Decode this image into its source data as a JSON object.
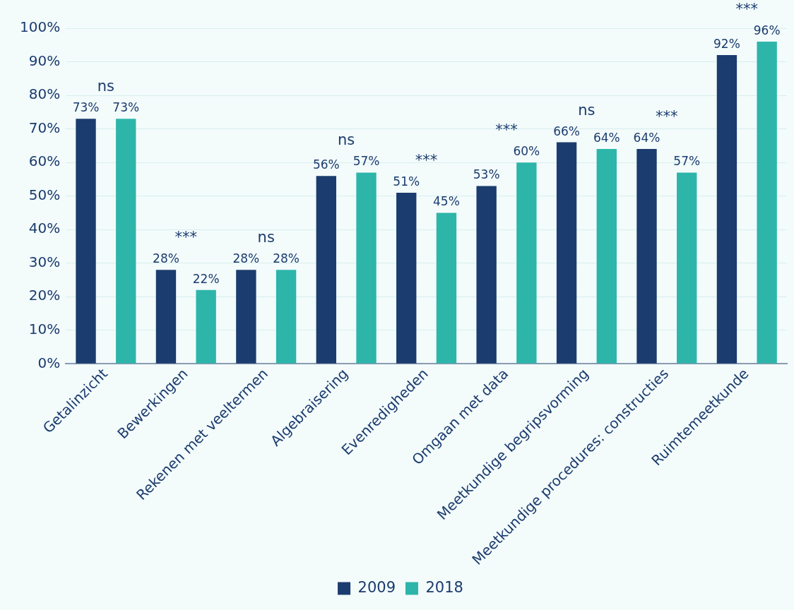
{
  "chart_data": {
    "type": "bar",
    "categories": [
      "Getalinzicht",
      "Bewerkingen",
      "Rekenen met veeltermen",
      "Algebraisering",
      "Evenredigheden",
      "Omgaan met data",
      "Meetkundige begripsvorming",
      "Meetkundige procedures: constructies",
      "Ruimtemeetkunde"
    ],
    "series": [
      {
        "name": "2009",
        "color": "#1b3c6e",
        "values": [
          73,
          28,
          28,
          56,
          51,
          53,
          66,
          64,
          92
        ],
        "value_labels": [
          "73%",
          "28%",
          "28%",
          "56%",
          "51%",
          "53%",
          "66%",
          "64%",
          "92%"
        ]
      },
      {
        "name": "2018",
        "color": "#2db5aa",
        "values": [
          73,
          22,
          28,
          57,
          45,
          60,
          64,
          57,
          96
        ],
        "value_labels": [
          "73%",
          "22%",
          "28%",
          "57%",
          "45%",
          "60%",
          "64%",
          "57%",
          "96%"
        ]
      }
    ],
    "ylim": [
      0,
      100
    ],
    "yticks": [
      {
        "value": 0,
        "label": "0%"
      },
      {
        "value": 10,
        "label": "10%"
      },
      {
        "value": 20,
        "label": "20%"
      },
      {
        "value": 30,
        "label": "30%"
      },
      {
        "value": 40,
        "label": "40%"
      },
      {
        "value": 50,
        "label": "50%"
      },
      {
        "value": 60,
        "label": "60%"
      },
      {
        "value": 70,
        "label": "70%"
      },
      {
        "value": 80,
        "label": "80%"
      },
      {
        "value": 90,
        "label": "90%"
      },
      {
        "value": 100,
        "label": "100%"
      }
    ],
    "annotations": [
      "ns",
      "***",
      "ns",
      "ns",
      "***",
      "***",
      "ns",
      "***",
      "***"
    ],
    "grid": "y",
    "legend": "bottom"
  }
}
